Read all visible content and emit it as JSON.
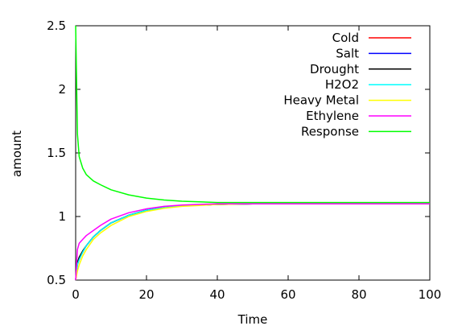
{
  "chart_data": {
    "type": "line",
    "xlabel": "Time",
    "ylabel": "amount",
    "xlim": [
      0,
      100
    ],
    "ylim": [
      0.5,
      2.5
    ],
    "x_ticks": [
      "0",
      "20",
      "40",
      "60",
      "80",
      "100"
    ],
    "y_ticks": [
      "0.5",
      "1",
      "1.5",
      "2",
      "2.5"
    ],
    "legend_position": "top-right",
    "grid": false,
    "x": [
      0,
      0.5,
      1,
      2,
      3,
      5,
      7,
      10,
      15,
      20,
      25,
      30,
      40,
      50,
      60,
      80,
      100
    ],
    "series": [
      {
        "name": "Cold",
        "color": "#ff0000",
        "values": [
          0.5,
          0.62,
          0.66,
          0.72,
          0.77,
          0.84,
          0.89,
          0.95,
          1.01,
          1.05,
          1.07,
          1.085,
          1.095,
          1.1,
          1.1,
          1.1,
          1.1
        ]
      },
      {
        "name": "Salt",
        "color": "#0000ff",
        "values": [
          0.5,
          0.63,
          0.67,
          0.72,
          0.77,
          0.84,
          0.89,
          0.95,
          1.01,
          1.05,
          1.07,
          1.085,
          1.095,
          1.1,
          1.1,
          1.1,
          1.1
        ]
      },
      {
        "name": "Drought",
        "color": "#000000",
        "values": [
          0.5,
          0.64,
          0.68,
          0.73,
          0.77,
          0.84,
          0.89,
          0.95,
          1.01,
          1.05,
          1.07,
          1.085,
          1.095,
          1.1,
          1.1,
          1.1,
          1.1
        ]
      },
      {
        "name": "H2O2",
        "color": "#00ffff",
        "values": [
          0.5,
          0.62,
          0.66,
          0.72,
          0.77,
          0.84,
          0.89,
          0.95,
          1.01,
          1.05,
          1.07,
          1.085,
          1.095,
          1.1,
          1.1,
          1.1,
          1.1
        ]
      },
      {
        "name": "Heavy Metal",
        "color": "#ffff00",
        "values": [
          0.5,
          0.57,
          0.62,
          0.69,
          0.74,
          0.82,
          0.87,
          0.93,
          1.0,
          1.04,
          1.065,
          1.08,
          1.095,
          1.1,
          1.1,
          1.1,
          1.1
        ]
      },
      {
        "name": "Ethylene",
        "color": "#ff00ff",
        "values": [
          0.5,
          0.74,
          0.79,
          0.82,
          0.85,
          0.89,
          0.93,
          0.98,
          1.03,
          1.06,
          1.08,
          1.09,
          1.1,
          1.1,
          1.1,
          1.1,
          1.1
        ]
      },
      {
        "name": "Response",
        "color": "#00ff00",
        "values": [
          2.5,
          1.65,
          1.47,
          1.38,
          1.33,
          1.28,
          1.25,
          1.21,
          1.17,
          1.145,
          1.13,
          1.12,
          1.11,
          1.11,
          1.11,
          1.11,
          1.11
        ]
      }
    ]
  }
}
